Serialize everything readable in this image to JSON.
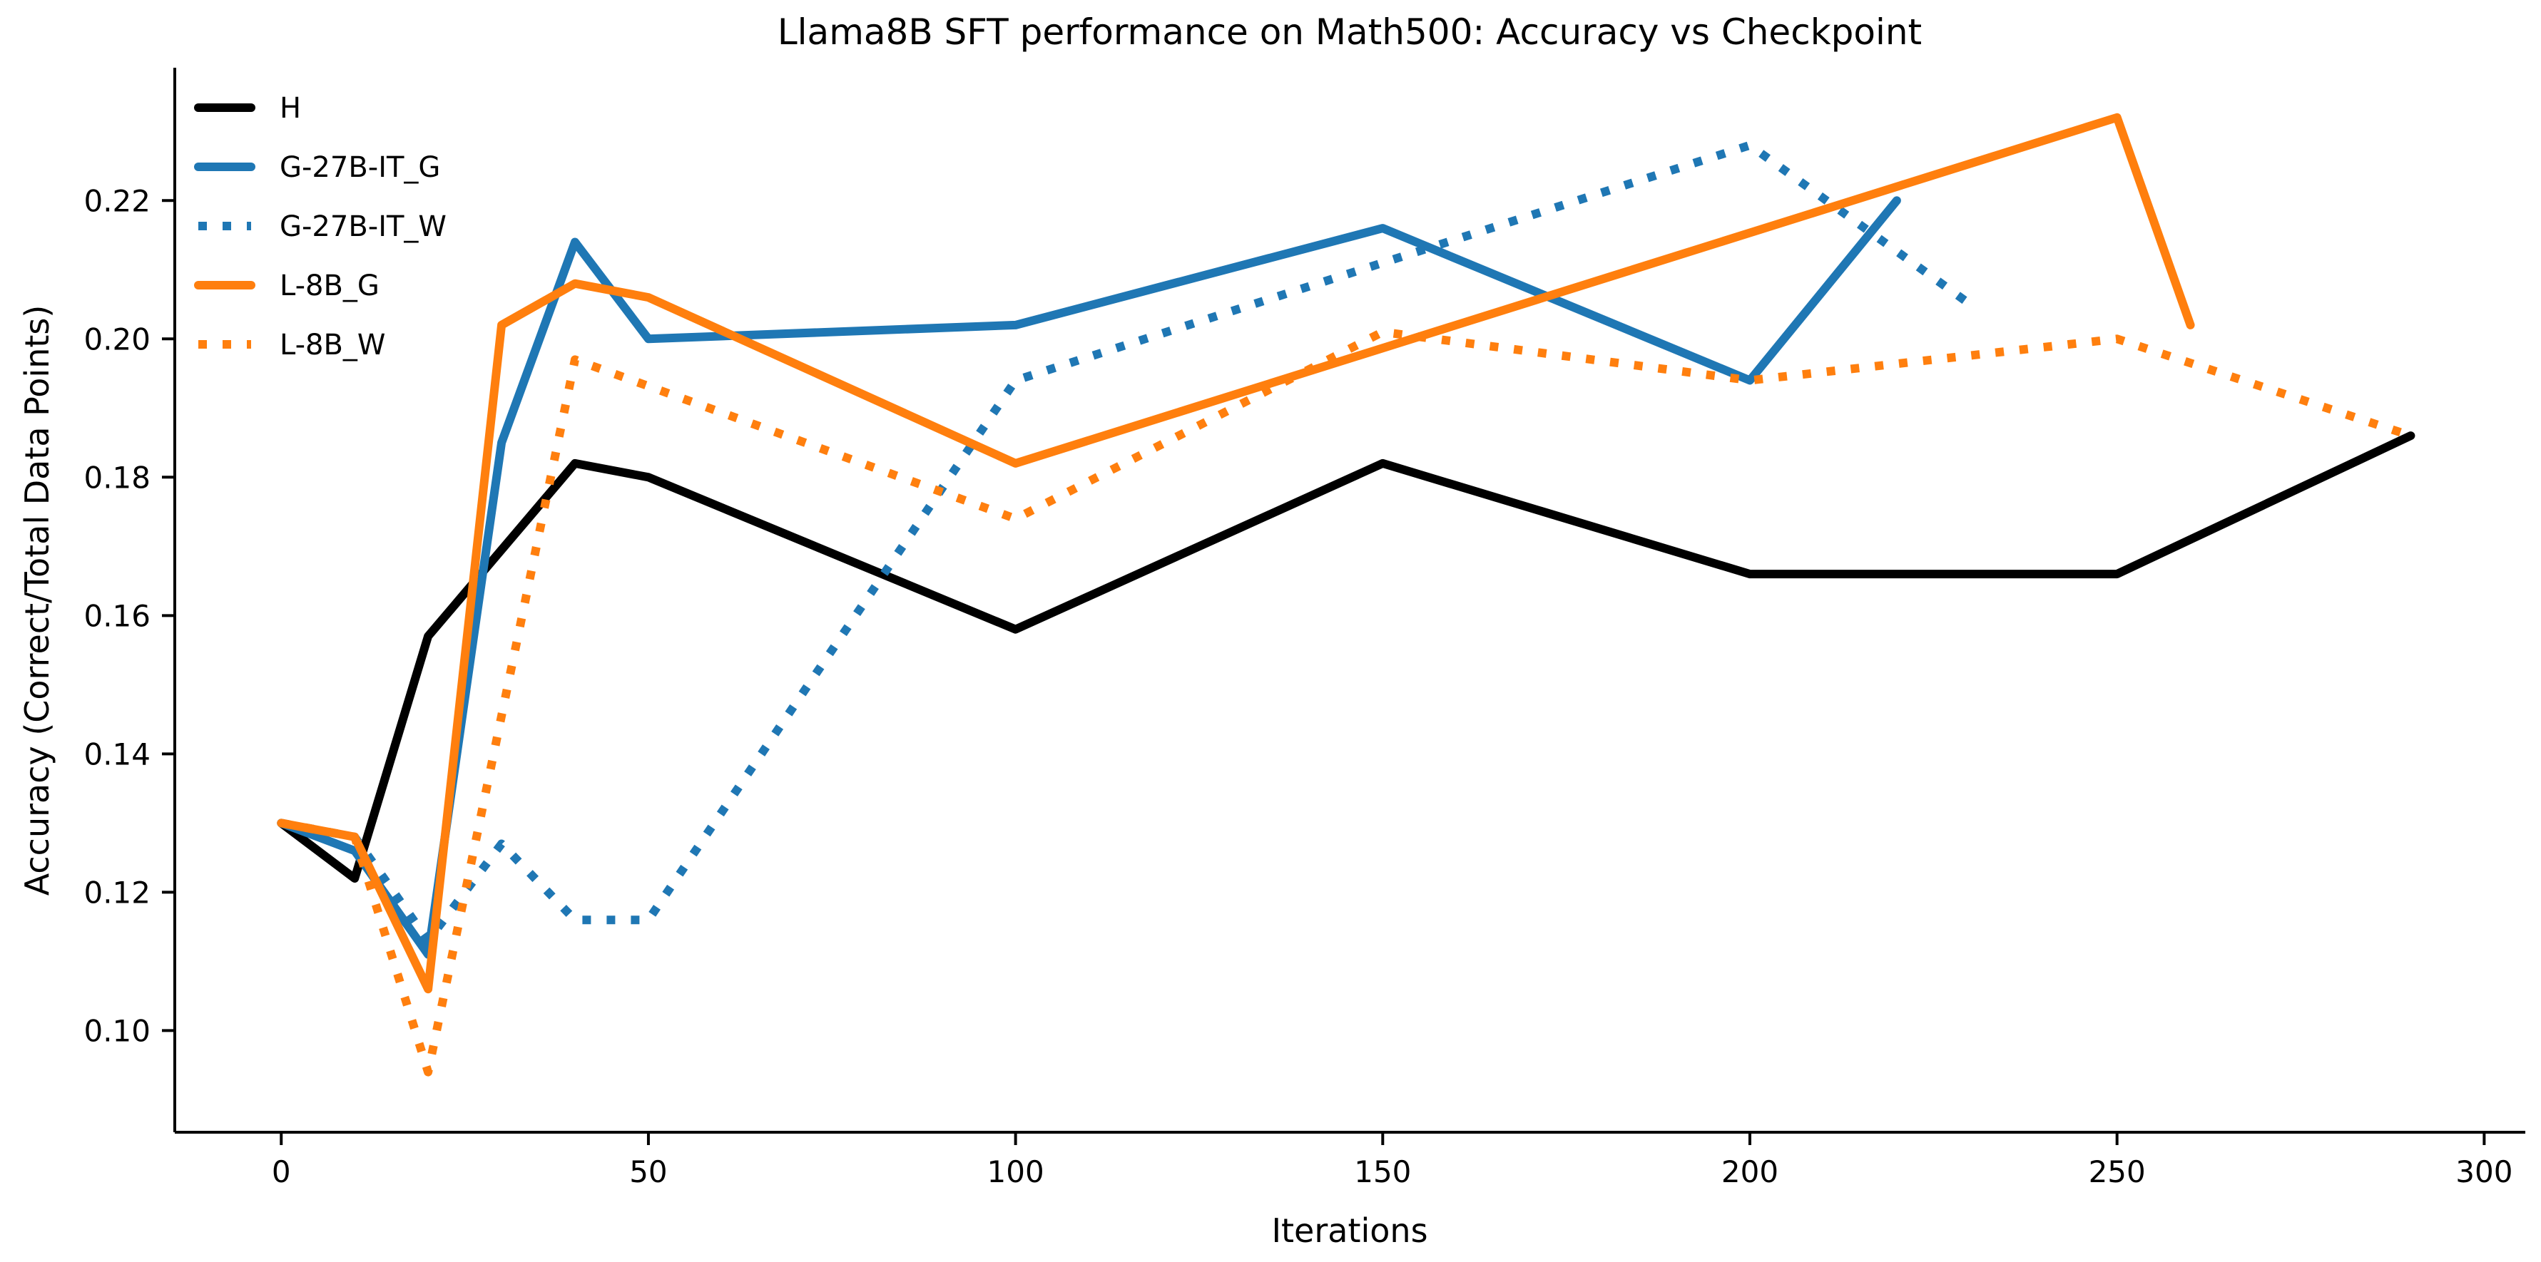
{
  "chart_data": {
    "type": "line",
    "title": "Llama8B SFT performance on Math500: Accuracy vs Checkpoint",
    "xlabel": "Iterations",
    "ylabel": "Accuracy (Correct/Total Data Points)",
    "xlim": [
      -14.5,
      305.6
    ],
    "ylim": [
      0.0853,
      0.2392
    ],
    "xticks": [
      0,
      50,
      100,
      150,
      200,
      250,
      300
    ],
    "yticks": [
      0.1,
      0.12,
      0.14,
      0.16,
      0.18,
      0.2,
      0.22
    ],
    "grid": false,
    "legend_position": "upper left",
    "axis_color": "#000000",
    "background_color": "#ffffff",
    "series": [
      {
        "name": "H",
        "color": "#000000",
        "style": "solid",
        "points": [
          [
            0,
            0.13
          ],
          [
            10,
            0.122
          ],
          [
            20,
            0.157
          ],
          [
            40,
            0.182
          ],
          [
            50,
            0.18
          ],
          [
            100,
            0.158
          ],
          [
            150,
            0.182
          ],
          [
            200,
            0.166
          ],
          [
            250,
            0.166
          ],
          [
            290,
            0.186
          ]
        ]
      },
      {
        "name": "G-27B-IT_G",
        "color": "#1f77b4",
        "style": "solid",
        "points": [
          [
            0,
            0.13
          ],
          [
            10,
            0.126
          ],
          [
            20,
            0.111
          ],
          [
            30,
            0.185
          ],
          [
            40,
            0.214
          ],
          [
            50,
            0.2
          ],
          [
            100,
            0.202
          ],
          [
            150,
            0.216
          ],
          [
            200,
            0.194
          ],
          [
            220,
            0.22
          ]
        ]
      },
      {
        "name": "G-27B-IT_W",
        "color": "#1f77b4",
        "style": "dotted",
        "points": [
          [
            0,
            0.13
          ],
          [
            10,
            0.128
          ],
          [
            20,
            0.113
          ],
          [
            30,
            0.127
          ],
          [
            40,
            0.116
          ],
          [
            50,
            0.116
          ],
          [
            100,
            0.194
          ],
          [
            200,
            0.228
          ],
          [
            230,
            0.205
          ]
        ]
      },
      {
        "name": "L-8B_G",
        "color": "#ff7f0e",
        "style": "solid",
        "points": [
          [
            0,
            0.13
          ],
          [
            10,
            0.128
          ],
          [
            20,
            0.106
          ],
          [
            30,
            0.202
          ],
          [
            40,
            0.208
          ],
          [
            50,
            0.206
          ],
          [
            100,
            0.182
          ],
          [
            250,
            0.232
          ],
          [
            260,
            0.202
          ]
        ]
      },
      {
        "name": "L-8B_W",
        "color": "#ff7f0e",
        "style": "dotted",
        "points": [
          [
            0,
            0.13
          ],
          [
            10,
            0.128
          ],
          [
            20,
            0.094
          ],
          [
            40,
            0.197
          ],
          [
            100,
            0.174
          ],
          [
            150,
            0.201
          ],
          [
            200,
            0.194
          ],
          [
            250,
            0.2
          ],
          [
            290,
            0.186
          ]
        ]
      }
    ]
  }
}
